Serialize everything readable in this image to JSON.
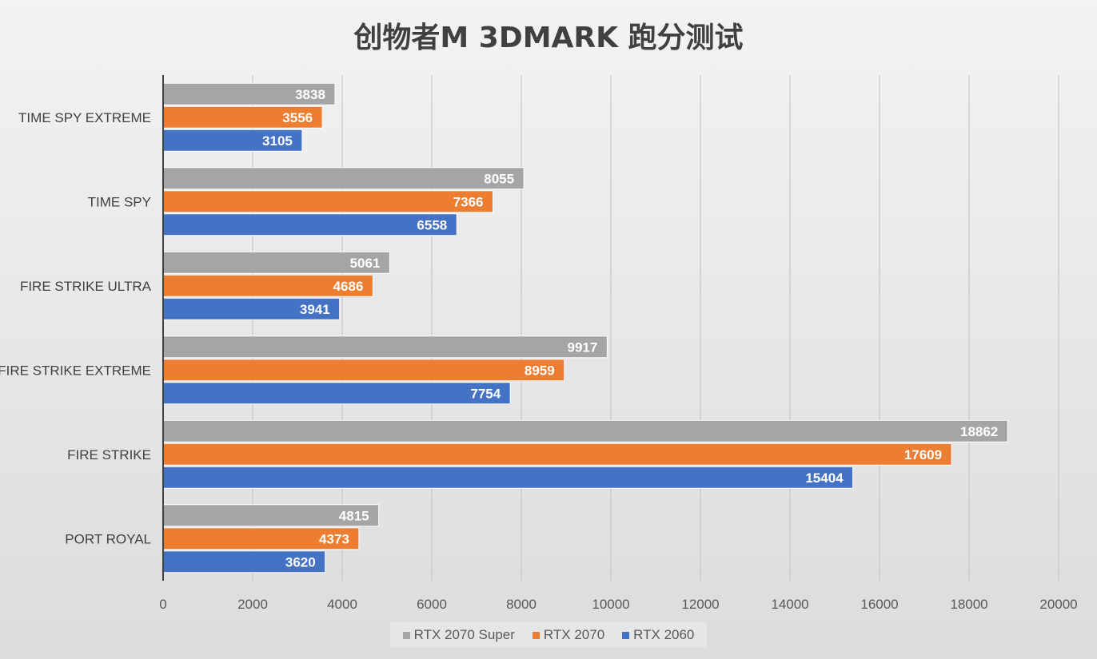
{
  "chart_data": {
    "type": "bar",
    "orientation": "horizontal",
    "title": "创物者M  3DMARK 跑分测试",
    "categories": [
      "TIME SPY EXTREME",
      "TIME SPY",
      "FIRE STRIKE ULTRA",
      "FIRE STRIKE EXTREME",
      "FIRE STRIKE",
      "PORT ROYAL"
    ],
    "series": [
      {
        "name": "RTX 2070 Super",
        "color": "#a5a5a5",
        "values": [
          3838,
          8055,
          5061,
          9917,
          18862,
          4815
        ]
      },
      {
        "name": "RTX 2070",
        "color": "#ed7d31",
        "values": [
          3556,
          7366,
          4686,
          8959,
          17609,
          4373
        ]
      },
      {
        "name": "RTX 2060",
        "color": "#4472c4",
        "values": [
          3105,
          6558,
          3941,
          7754,
          15404,
          3620
        ]
      }
    ],
    "xlim": [
      0,
      20000
    ],
    "xticks": [
      0,
      2000,
      4000,
      6000,
      8000,
      10000,
      12000,
      14000,
      16000,
      18000,
      20000
    ],
    "grid": true,
    "data_labels": true,
    "legend_position": "bottom"
  }
}
